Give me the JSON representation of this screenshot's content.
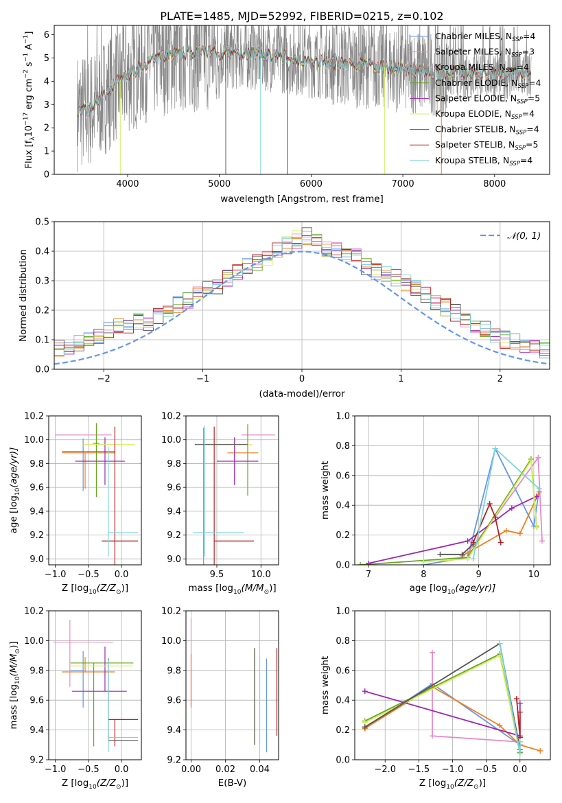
{
  "figure_title": "PLATE=1485, MJD=52992, FIBERID=0215, z=0.102",
  "colors": {
    "chabrier_miles": "#6495ed",
    "salpeter_miles": "#e78ac3",
    "kroupa_miles": "#f07f1e",
    "chabrier_elodie": "#66a61e",
    "salpeter_elodie": "#9c27b0",
    "kroupa_elodie": "#d4ee5e",
    "chabrier_stelib": "#555555",
    "salpeter_stelib": "#b22222",
    "kroupa_stelib": "#7ed4d8",
    "data_grey": "#888888",
    "normal_curve": "#6495ed",
    "grid": "#b0b0b0"
  },
  "chart_data": [
    {
      "id": "spectrum",
      "type": "line",
      "xlabel": "wavelength [Angstrom, rest frame]",
      "ylabel_main": "Flux [f",
      "ylabel_lambda": "λ",
      "ylabel_rest": "10",
      "ylabel_exp": "−17",
      "ylabel_units": " erg cm",
      "xlim": [
        3200,
        8600
      ],
      "ylim": [
        0,
        6.4
      ],
      "xticks": [
        4000,
        5000,
        6000,
        7000,
        8000
      ],
      "yticks": [
        0,
        1,
        2,
        3,
        4,
        5,
        6
      ],
      "grid": false,
      "legend_position": "right",
      "series": [
        {
          "name": "Chabrier MILES, N",
          "sub": "SSP",
          "suffix": "=4",
          "key": "chabrier_miles"
        },
        {
          "name": "Salpeter MILES, N",
          "sub": "SSP",
          "suffix": "=3",
          "key": "salpeter_miles"
        },
        {
          "name": "Kroupa MILES, N",
          "sub": "SSP",
          "suffix": "=4",
          "key": "kroupa_miles"
        },
        {
          "name": "Chabrier ELODIE, N",
          "sub": "SSP",
          "suffix": "=4",
          "key": "chabrier_elodie"
        },
        {
          "name": "Salpeter ELODIE, N",
          "sub": "SSP",
          "suffix": "=5",
          "key": "salpeter_elodie"
        },
        {
          "name": "Kroupa ELODIE, N",
          "sub": "SSP",
          "suffix": "=4",
          "key": "kroupa_elodie"
        },
        {
          "name": "Chabrier STELIB, N",
          "sub": "SSP",
          "suffix": "=4",
          "key": "chabrier_stelib"
        },
        {
          "name": "Salpeter STELIB, N",
          "sub": "SSP",
          "suffix": "=5",
          "key": "salpeter_stelib"
        },
        {
          "name": "Kroupa STELIB, N",
          "sub": "SSP",
          "suffix": "=4",
          "key": "kroupa_stelib"
        }
      ],
      "continuum": {
        "x": [
          3450,
          3600,
          3700,
          3800,
          3900,
          4000,
          4100,
          4200,
          4400,
          4600,
          4800,
          5000,
          5200,
          5400,
          5600,
          5800,
          6000,
          6200,
          6400,
          6600,
          6800,
          7000,
          7200,
          7400,
          7600,
          7800,
          8000,
          8200,
          8400
        ],
        "y": [
          2.7,
          2.8,
          3.2,
          3.6,
          4.0,
          4.3,
          4.5,
          4.8,
          5.1,
          5.2,
          5.3,
          5.2,
          5.2,
          5.2,
          5.1,
          5.0,
          4.85,
          4.8,
          4.75,
          4.7,
          4.65,
          4.5,
          4.45,
          4.4,
          4.4,
          4.4,
          4.35,
          4.35,
          4.3
        ]
      }
    },
    {
      "id": "residual_hist",
      "type": "line",
      "xlabel": "(data-model)/error",
      "ylabel": "Normed distribution",
      "xlim": [
        -2.5,
        2.5
      ],
      "ylim": [
        0,
        0.5
      ],
      "xticks": [
        -2,
        -1,
        0,
        1,
        2
      ],
      "yticks": [
        0.0,
        0.1,
        0.2,
        0.3,
        0.4,
        0.5
      ],
      "grid": true,
      "legend_position": "top-right",
      "legend_label": "𝒩(0, 1)",
      "bin_width": 0.1,
      "histogram_center_values": [
        0.02,
        0.03,
        0.04,
        0.05,
        0.06,
        0.07,
        0.08,
        0.09,
        0.1,
        0.11,
        0.13,
        0.15,
        0.15,
        0.16,
        0.16,
        0.18,
        0.2,
        0.22,
        0.23,
        0.26,
        0.27,
        0.28,
        0.31,
        0.33,
        0.35,
        0.36,
        0.38,
        0.4,
        0.42,
        0.44,
        0.45,
        0.43,
        0.41,
        0.4,
        0.39,
        0.38,
        0.35,
        0.33,
        0.32,
        0.31,
        0.29,
        0.28,
        0.25,
        0.23,
        0.21,
        0.19,
        0.17,
        0.15,
        0.14,
        0.12,
        0.1,
        0.09,
        0.08,
        0.07,
        0.06,
        0.05,
        0.04,
        0.035,
        0.03,
        0.03
      ]
    },
    {
      "id": "age_vs_Z",
      "type": "scatter",
      "xlabel": "Z [log",
      "xlabel_sub": "10",
      "xlabel_rest": "(Z/Z",
      "xlabel_sym": "⊙",
      "xlabel_end": ")]",
      "ylabel": "age  [log",
      "ylabel_sub": "10",
      "ylabel_rest": "(age/yr)]",
      "xlim": [
        -1.1,
        0.3
      ],
      "ylim": [
        8.95,
        10.2
      ],
      "xticks": [
        -1.0,
        -0.5,
        0.0
      ],
      "yticks": [
        9.0,
        9.2,
        9.4,
        9.6,
        9.8,
        10.0,
        10.2
      ],
      "grid": true,
      "points": [
        {
          "key": "chabrier_miles",
          "x": -0.58,
          "y": 9.79,
          "xerr": [
            0.0,
            0.0
          ],
          "yerr": [
            0.22,
            0.22
          ]
        },
        {
          "key": "salpeter_miles",
          "x": -0.55,
          "y": 10.04,
          "xerr": [
            0.45,
            0.4
          ],
          "yerr": [
            0.0,
            0.0
          ]
        },
        {
          "key": "kroupa_miles",
          "x": -0.55,
          "y": 9.89,
          "xerr": [
            0.35,
            0.45
          ],
          "yerr": [
            0.3,
            0.0
          ]
        },
        {
          "key": "chabrier_elodie",
          "x": -0.38,
          "y": 9.97,
          "xerr": [
            0.05,
            0.05
          ],
          "yerr": [
            0.45,
            0.17
          ]
        },
        {
          "key": "salpeter_elodie",
          "x": -0.25,
          "y": 9.82,
          "xerr": [
            0.45,
            0.3
          ],
          "yerr": [
            0.2,
            0.2
          ]
        },
        {
          "key": "kroupa_elodie",
          "x": -0.38,
          "y": 9.96,
          "xerr": [
            0.2,
            0.58
          ],
          "yerr": [
            0.0,
            0.0
          ]
        },
        {
          "key": "chabrier_stelib",
          "x": -0.55,
          "y": 9.9,
          "xerr": [
            0.35,
            0.45
          ],
          "yerr": [
            0.0,
            0.0
          ]
        },
        {
          "key": "salpeter_stelib",
          "x": -0.1,
          "y": 9.15,
          "xerr": [
            0.2,
            0.35
          ],
          "yerr": [
            0.25,
            0.96
          ]
        },
        {
          "key": "kroupa_stelib",
          "x": -0.2,
          "y": 9.22,
          "xerr": [
            0.0,
            0.45
          ],
          "yerr": [
            0.2,
            0.72
          ]
        }
      ]
    },
    {
      "id": "age_vs_mass",
      "type": "scatter",
      "xlabel": "mass [log",
      "xlabel_sub": "10",
      "xlabel_rest": "(M/M",
      "xlabel_sym": "⊙",
      "xlabel_end": ")]",
      "xlim": [
        9.15,
        10.2
      ],
      "ylim": [
        8.95,
        10.2
      ],
      "xticks": [
        9.5,
        10.0
      ],
      "yticks": [
        9.0,
        9.2,
        9.4,
        9.6,
        9.8,
        10.0,
        10.2
      ],
      "grid": true,
      "points": [
        {
          "key": "chabrier_miles",
          "x": 9.35,
          "y": 9.6,
          "xerr": [
            0.0,
            0.0
          ],
          "yerr": [
            0.7,
            0.5
          ]
        },
        {
          "key": "salpeter_miles",
          "x": 9.98,
          "y": 10.04,
          "xerr": [
            0.2,
            0.18
          ],
          "yerr": [
            0.0,
            0.0
          ]
        },
        {
          "key": "kroupa_miles",
          "x": 9.82,
          "y": 9.89,
          "xerr": [
            0.2,
            0.15
          ],
          "yerr": [
            0.0,
            0.0
          ]
        },
        {
          "key": "chabrier_elodie",
          "x": 9.85,
          "y": 9.98,
          "xerr": [
            0.0,
            0.0
          ],
          "yerr": [
            0.45,
            0.15
          ]
        },
        {
          "key": "salpeter_elodie",
          "x": 9.7,
          "y": 9.82,
          "xerr": [
            0.2,
            0.27
          ],
          "yerr": [
            0.2,
            0.2
          ]
        },
        {
          "key": "kroupa_elodie",
          "x": 9.65,
          "y": 9.96,
          "xerr": [
            0.3,
            0.25
          ],
          "yerr": [
            0.0,
            0.0
          ]
        },
        {
          "key": "chabrier_stelib",
          "x": 9.55,
          "y": 9.96,
          "xerr": [
            0.3,
            0.3
          ],
          "yerr": [
            0.0,
            0.0
          ]
        },
        {
          "key": "salpeter_stelib",
          "x": 9.47,
          "y": 9.15,
          "xerr": [
            0.0,
            0.45
          ],
          "yerr": [
            0.2,
            0.96
          ]
        },
        {
          "key": "kroupa_stelib",
          "x": 9.36,
          "y": 9.22,
          "xerr": [
            0.13,
            0.45
          ],
          "yerr": [
            0.2,
            0.9
          ]
        }
      ]
    },
    {
      "id": "mass_weight_vs_age",
      "type": "line",
      "xlabel": "age  [log",
      "xlabel_sub": "10",
      "xlabel_rest": "(age/yr)]",
      "ylabel": "mass weight",
      "xlim": [
        6.75,
        10.3
      ],
      "ylim": [
        0,
        1.0
      ],
      "xticks": [
        7,
        8,
        9,
        10
      ],
      "yticks": [
        0.0,
        0.2,
        0.4,
        0.6,
        0.8,
        1.0
      ],
      "grid": true,
      "series": [
        {
          "key": "chabrier_miles",
          "x": [
            8.0,
            8.8,
            9.3,
            10.0,
            10.1
          ],
          "y": [
            0.0,
            0.05,
            0.78,
            0.26,
            0.51
          ]
        },
        {
          "key": "salpeter_miles",
          "x": [
            8.8,
            9.3,
            10.08,
            10.15
          ],
          "y": [
            0.08,
            0.32,
            0.72,
            0.16
          ]
        },
        {
          "key": "kroupa_miles",
          "x": [
            8.7,
            9.5,
            9.75,
            10.1
          ],
          "y": [
            0.06,
            0.23,
            0.21,
            0.49
          ]
        },
        {
          "key": "chabrier_elodie",
          "x": [
            6.85,
            8.8,
            9.95,
            10.05
          ],
          "y": [
            0.0,
            0.05,
            0.71,
            0.26
          ]
        },
        {
          "key": "salpeter_elodie",
          "x": [
            7.0,
            8.8,
            9.6,
            10.05
          ],
          "y": [
            0.01,
            0.16,
            0.38,
            0.46
          ]
        },
        {
          "key": "kroupa_elodie",
          "x": [
            8.0,
            8.8,
            9.95,
            10.05
          ],
          "y": [
            0.02,
            0.04,
            0.7,
            0.25
          ]
        },
        {
          "key": "chabrier_stelib",
          "x": [
            8.3,
            8.7,
            8.9
          ],
          "y": [
            0.07,
            0.07,
            0.14
          ]
        },
        {
          "key": "salpeter_stelib",
          "x": [
            8.9,
            9.2,
            9.3,
            9.4
          ],
          "y": [
            0.15,
            0.41,
            0.32,
            0.15
          ]
        },
        {
          "key": "kroupa_stelib",
          "x": [
            8.9,
            9.3,
            10.1
          ],
          "y": [
            0.04,
            0.78,
            0.51
          ]
        }
      ]
    },
    {
      "id": "mass_vs_Z",
      "type": "scatter",
      "xlabel": "Z [log",
      "xlabel_sub": "10",
      "xlabel_rest": "(Z/Z",
      "xlabel_sym": "⊙",
      "xlabel_end": ")]",
      "ylabel": "mass [log",
      "ylabel_sub": "10",
      "ylabel_rest": "(M/M",
      "ylabel_sym": "⊙",
      "ylabel_end": ")]",
      "xlim": [
        -1.1,
        0.3
      ],
      "ylim": [
        9.2,
        10.2
      ],
      "xticks": [
        -1.0,
        -0.5,
        0.0
      ],
      "yticks": [
        9.2,
        9.4,
        9.6,
        9.8,
        10.0,
        10.2
      ],
      "grid": true,
      "points": [
        {
          "key": "chabrier_miles",
          "x": -0.58,
          "y": 9.8,
          "xerr": [
            0.2,
            0.0
          ],
          "yerr": [
            0.25,
            0.13
          ]
        },
        {
          "key": "salpeter_miles",
          "x": -0.78,
          "y": 9.99,
          "xerr": [
            0.25,
            0.65
          ],
          "yerr": [
            0.3,
            0.15
          ]
        },
        {
          "key": "kroupa_miles",
          "x": -0.55,
          "y": 9.79,
          "xerr": [
            0.35,
            0.45
          ],
          "yerr": [
            0.0,
            0.1
          ]
        },
        {
          "key": "chabrier_elodie",
          "x": -0.42,
          "y": 9.85,
          "xerr": [
            0.35,
            0.6
          ],
          "yerr": [
            0.56,
            0.0
          ]
        },
        {
          "key": "salpeter_elodie",
          "x": -0.25,
          "y": 9.66,
          "xerr": [
            0.5,
            0.33
          ],
          "yerr": [
            0.0,
            0.3
          ]
        },
        {
          "key": "kroupa_elodie",
          "x": -0.38,
          "y": 9.83,
          "xerr": [
            0.4,
            0.55
          ],
          "yerr": [
            0.0,
            0.0
          ]
        },
        {
          "key": "chabrier_stelib",
          "x": -0.2,
          "y": 9.33,
          "xerr": [
            0.0,
            0.45
          ],
          "yerr": [
            0.0,
            0.55
          ]
        },
        {
          "key": "salpeter_stelib",
          "x": -0.1,
          "y": 9.47,
          "xerr": [
            0.1,
            0.35
          ],
          "yerr": [
            0.18,
            0.0
          ]
        },
        {
          "key": "kroupa_stelib",
          "x": -0.2,
          "y": 9.35,
          "xerr": [
            0.0,
            0.45
          ],
          "yerr": [
            0.1,
            0.52
          ]
        }
      ]
    },
    {
      "id": "mass_vs_ebv",
      "type": "scatter",
      "xlabel": "E(B-V)",
      "xlim": [
        -0.003,
        0.051
      ],
      "ylim": [
        9.2,
        10.2
      ],
      "xticks": [
        0.0,
        0.02,
        0.04
      ],
      "yticks": [
        9.2,
        9.4,
        9.6,
        9.8,
        10.0,
        10.2
      ],
      "grid": true,
      "points": [
        {
          "key": "salpeter_miles",
          "x": 0.0,
          "y": 9.99,
          "yerr": [
            0.44,
            0.16
          ]
        },
        {
          "key": "kroupa_miles",
          "x": 0.0,
          "y": 9.79,
          "yerr": [
            0.24,
            0.12
          ]
        },
        {
          "key": "kroupa_elodie",
          "x": 0.037,
          "y": 9.83,
          "yerr": [
            0.53,
            0.12
          ]
        },
        {
          "key": "chabrier_stelib",
          "x": 0.037,
          "y": 9.7,
          "yerr": [
            0.4,
            0.25
          ]
        },
        {
          "key": "kroupa_stelib",
          "x": 0.04,
          "y": 9.6,
          "yerr": [
            0.3,
            0.3
          ]
        },
        {
          "key": "chabrier_miles",
          "x": 0.044,
          "y": 9.6,
          "yerr": [
            0.35,
            0.28
          ]
        },
        {
          "key": "salpeter_stelib",
          "x": 0.05,
          "y": 9.66,
          "yerr": [
            0.3,
            0.29
          ]
        }
      ]
    },
    {
      "id": "mass_weight_vs_Z",
      "type": "line",
      "xlabel": "Z [log",
      "xlabel_sub": "10",
      "xlabel_rest": "(Z/Z",
      "xlabel_sym": "⊙",
      "xlabel_end": ")]",
      "ylabel": "mass weight",
      "xlim": [
        -2.45,
        0.45
      ],
      "ylim": [
        0,
        1.0
      ],
      "xticks": [
        -2.0,
        -1.5,
        -1.0,
        -0.5,
        0.0
      ],
      "yticks": [
        0.0,
        0.2,
        0.4,
        0.6,
        0.8,
        1.0
      ],
      "grid": true,
      "series": [
        {
          "key": "chabrier_miles",
          "x": [
            -2.3,
            -1.3,
            0.0,
            0.0
          ],
          "y": [
            0.21,
            0.51,
            0.1,
            0.05
          ]
        },
        {
          "key": "salpeter_miles",
          "x": [
            -1.3,
            -1.3,
            0.0
          ],
          "y": [
            0.72,
            0.16,
            0.12
          ]
        },
        {
          "key": "kroupa_miles",
          "x": [
            -2.3,
            -1.3,
            -0.3,
            0.0,
            0.3
          ],
          "y": [
            0.21,
            0.49,
            0.23,
            0.1,
            0.06
          ]
        },
        {
          "key": "chabrier_elodie",
          "x": [
            -2.3,
            -0.3,
            0.0
          ],
          "y": [
            0.26,
            0.71,
            0.05
          ]
        },
        {
          "key": "salpeter_elodie",
          "x": [
            -2.3,
            0.0,
            0.0
          ],
          "y": [
            0.46,
            0.16,
            0.38
          ]
        },
        {
          "key": "kroupa_elodie",
          "x": [
            -2.3,
            -0.3,
            0.0
          ],
          "y": [
            0.25,
            0.7,
            0.04
          ]
        },
        {
          "key": "chabrier_stelib",
          "x": [
            -2.3,
            -0.3,
            0.0
          ],
          "y": [
            0.22,
            0.78,
            0.07
          ]
        },
        {
          "key": "salpeter_stelib",
          "x": [
            -0.05,
            0.0,
            0.0,
            0.0
          ],
          "y": [
            0.41,
            0.15,
            0.32,
            0.15
          ]
        },
        {
          "key": "kroupa_stelib",
          "x": [
            -0.3,
            0.0,
            0.0
          ],
          "y": [
            0.78,
            0.04,
            0.12
          ]
        }
      ]
    }
  ]
}
